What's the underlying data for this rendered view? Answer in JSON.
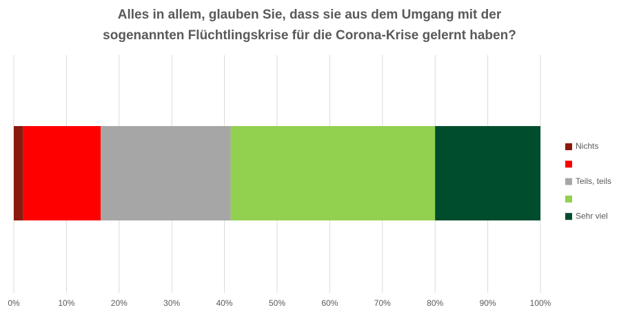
{
  "chart_data": {
    "type": "stacked_bar_horizontal",
    "title": [
      "Alles in allem, glauben Sie, dass sie aus dem Umgang mit der",
      "sogenannten Flüchtlingskrise für die Corona-Krise gelernt haben?"
    ],
    "categories": [
      null
    ],
    "series": [
      {
        "name": "Nichts",
        "color": "#8b1a0e",
        "values": [
          1.8
        ]
      },
      {
        "name": null,
        "color": "#ff0000",
        "values": [
          14.7
        ]
      },
      {
        "name": "Teils, teils",
        "color": "#a6a6a6",
        "values": [
          24.7
        ]
      },
      {
        "name": null,
        "color": "#92d050",
        "values": [
          38.8
        ]
      },
      {
        "name": "Sehr viel",
        "color": "#004d2d",
        "values": [
          20.0
        ]
      }
    ],
    "xlim": [
      0,
      100
    ],
    "xticks": [
      {
        "value": 0,
        "label": "0%"
      },
      {
        "value": 10,
        "label": "10%"
      },
      {
        "value": 20,
        "label": "20%"
      },
      {
        "value": 30,
        "label": "30%"
      },
      {
        "value": 40,
        "label": "40%"
      },
      {
        "value": 50,
        "label": "50%"
      },
      {
        "value": 60,
        "label": "60%"
      },
      {
        "value": 70,
        "label": "70%"
      },
      {
        "value": 80,
        "label": "80%"
      },
      {
        "value": 90,
        "label": "90%"
      },
      {
        "value": 100,
        "label": "100%"
      }
    ],
    "grid": true,
    "legend": "right"
  }
}
